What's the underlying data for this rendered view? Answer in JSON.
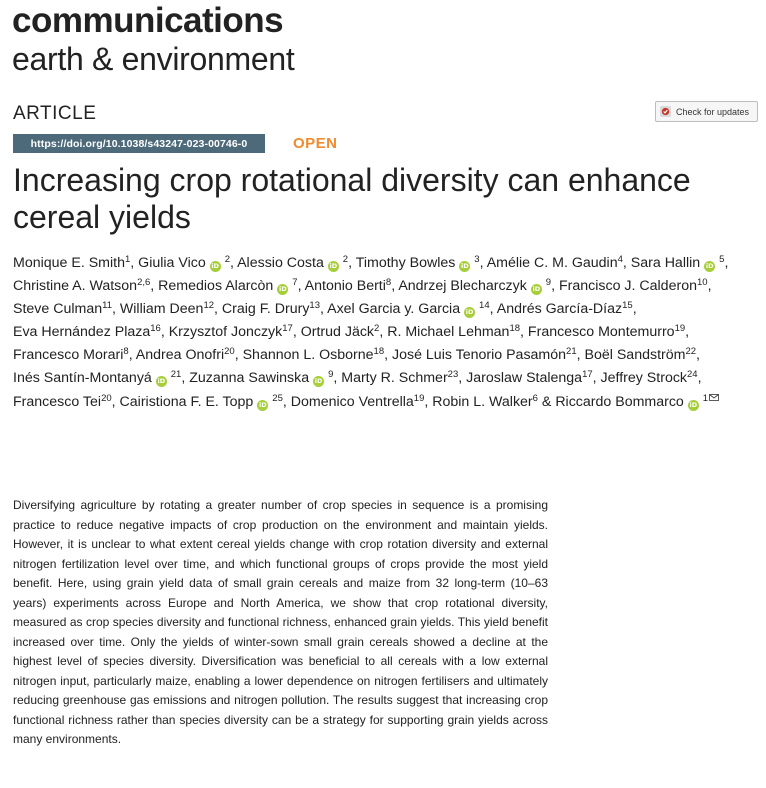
{
  "journal": {
    "line1": "communications",
    "line2": "earth & environment"
  },
  "article_type": "ARTICLE",
  "check_updates": {
    "label": "Check for updates"
  },
  "doi": "https://doi.org/10.1038/s43247-023-00746-0",
  "access": "OPEN",
  "title": "Increasing crop rotational diversity can enhance cereal yields",
  "orcid_badge": "iD",
  "authors": [
    {
      "name": "Monique E. Smith",
      "aff": "1",
      "orcid": false
    },
    {
      "name": "Giulia Vico",
      "aff": "2",
      "orcid": true
    },
    {
      "name": "Alessio Costa",
      "aff": "2",
      "orcid": true
    },
    {
      "name": "Timothy Bowles",
      "aff": "3",
      "orcid": true
    },
    {
      "name": "Amélie C. M. Gaudin",
      "aff": "4",
      "orcid": false
    },
    {
      "name": "Sara Hallin",
      "aff": "5",
      "orcid": true
    },
    {
      "name": "Christine A. Watson",
      "aff": "2,6",
      "orcid": false
    },
    {
      "name": "Remedios Alarcòn",
      "aff": "7",
      "orcid": true
    },
    {
      "name": "Antonio Berti",
      "aff": "8",
      "orcid": false
    },
    {
      "name": "Andrzej Blecharczyk",
      "aff": "9",
      "orcid": true
    },
    {
      "name": "Francisco J. Calderon",
      "aff": "10",
      "orcid": false
    },
    {
      "name": "Steve Culman",
      "aff": "11",
      "orcid": false
    },
    {
      "name": "William Deen",
      "aff": "12",
      "orcid": false
    },
    {
      "name": "Craig F. Drury",
      "aff": "13",
      "orcid": false
    },
    {
      "name": "Axel Garcia y. Garcia",
      "aff": "14",
      "orcid": true
    },
    {
      "name": "Andrés García-Díaz",
      "aff": "15",
      "orcid": false
    },
    {
      "name": "Eva Hernández Plaza",
      "aff": "16",
      "orcid": false
    },
    {
      "name": "Krzysztof Jonczyk",
      "aff": "17",
      "orcid": false
    },
    {
      "name": "Ortrud Jäck",
      "aff": "2",
      "orcid": false
    },
    {
      "name": "R. Michael Lehman",
      "aff": "18",
      "orcid": false
    },
    {
      "name": "Francesco Montemurro",
      "aff": "19",
      "orcid": false
    },
    {
      "name": "Francesco Morari",
      "aff": "8",
      "orcid": false
    },
    {
      "name": "Andrea Onofri",
      "aff": "20",
      "orcid": false
    },
    {
      "name": "Shannon L. Osborne",
      "aff": "18",
      "orcid": false
    },
    {
      "name": "José Luis Tenorio Pasamón",
      "aff": "21",
      "orcid": false
    },
    {
      "name": "Boël Sandström",
      "aff": "22",
      "orcid": false
    },
    {
      "name": "Inés Santín-Montanyá",
      "aff": "21",
      "orcid": true
    },
    {
      "name": "Zuzanna Sawinska",
      "aff": "9",
      "orcid": true
    },
    {
      "name": "Marty R. Schmer",
      "aff": "23",
      "orcid": false
    },
    {
      "name": "Jaroslaw Stalenga",
      "aff": "17",
      "orcid": false
    },
    {
      "name": "Jeffrey Strock",
      "aff": "24",
      "orcid": false
    },
    {
      "name": "Francesco Tei",
      "aff": "20",
      "orcid": false
    },
    {
      "name": "Cairistiona F. E. Topp",
      "aff": "25",
      "orcid": true
    },
    {
      "name": "Domenico Ventrella",
      "aff": "19",
      "orcid": false
    },
    {
      "name": "Robin L. Walker",
      "aff": "6",
      "orcid": false
    },
    {
      "name": "Riccardo Bommarco",
      "aff": "1",
      "orcid": true,
      "corresponding": true
    }
  ],
  "abstract": "Diversifying agriculture by rotating a greater number of crop species in sequence is a promising practice to reduce negative impacts of crop production on the environment and maintain yields. However, it is unclear to what extent cereal yields change with crop rotation diversity and external nitrogen fertilization level over time, and which functional groups of crops provide the most yield benefit. Here, using grain yield data of small grain cereals and maize from 32 long-term (10–63 years) experiments across Europe and North America, we show that crop rotational diversity, measured as crop species diversity and functional richness, enhanced grain yields. This yield benefit increased over time. Only the yields of winter-sown small grain cereals showed a decline at the highest level of species diversity. Diversification was beneficial to all cereals with a low external nitrogen input, particularly maize, enabling a lower dependence on nitrogen fertilisers and ultimately reducing greenhouse gas emissions and nitrogen pollution. The results suggest that increasing crop functional richness rather than species diversity can be a strategy for supporting grain yields across many environments."
}
